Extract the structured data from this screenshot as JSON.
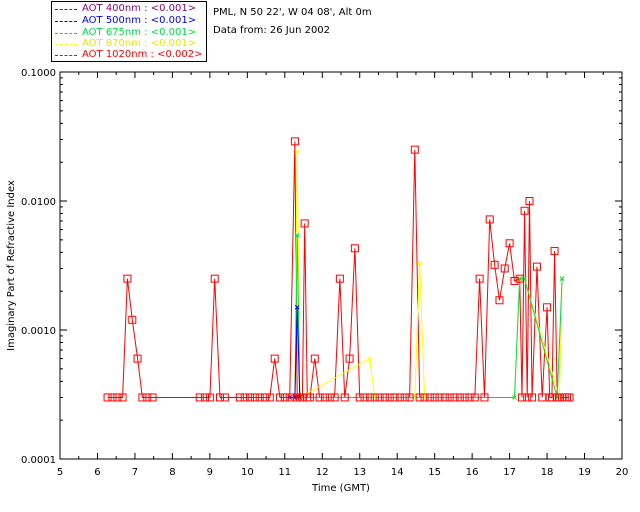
{
  "header": {
    "site": "PML, N 50 22', W 04 08', Alt 0m",
    "date": "Data from: 26 Jun 2002"
  },
  "legend": [
    {
      "label": "AOT  400nm : <0.001>",
      "color": "#7a0a7a"
    },
    {
      "label": "AOT  500nm : <0.001>",
      "color": "#0000ff"
    },
    {
      "label": "AOT  675nm : <0.001>",
      "color": "#00dd44"
    },
    {
      "label": "AOT  870nm : <0.001>",
      "color": "#ffff00"
    },
    {
      "label": "AOT 1020nm : <0.002>",
      "color": "#ff0000"
    }
  ],
  "chart_data": {
    "type": "line",
    "xlabel": "Time (GMT)",
    "ylabel": "Imaginary Part of Refractive Index",
    "xlim": [
      5,
      20
    ],
    "ylim": [
      0.0001,
      0.1
    ],
    "yscale": "log",
    "xticks": [
      "5",
      "6",
      "7",
      "8",
      "9",
      "10",
      "11",
      "12",
      "13",
      "14",
      "15",
      "16",
      "17",
      "18",
      "19",
      "20"
    ],
    "yticks": [
      "0.0001",
      "0.0010",
      "0.0100",
      "0.1000"
    ],
    "series": [
      {
        "name": "AOT 1020nm : <0.002>",
        "color": "#ff0000",
        "x": [
          6.27,
          6.4,
          6.53,
          6.67,
          6.8,
          6.93,
          7.07,
          7.2,
          7.33,
          7.47,
          8.73,
          8.87,
          9.0,
          9.13,
          9.27,
          9.4,
          9.8,
          9.93,
          10.07,
          10.2,
          10.33,
          10.47,
          10.6,
          10.73,
          10.87,
          11.0,
          11.13,
          11.27,
          11.33,
          11.4,
          11.47,
          11.53,
          11.6,
          11.67,
          11.8,
          11.93,
          12.07,
          12.2,
          12.33,
          12.47,
          12.6,
          12.73,
          12.87,
          13.0,
          13.13,
          13.27,
          13.4,
          13.53,
          13.67,
          13.8,
          13.93,
          14.07,
          14.2,
          14.33,
          14.47,
          14.6,
          14.73,
          14.87,
          15.0,
          15.13,
          15.27,
          15.4,
          15.53,
          15.67,
          15.8,
          15.93,
          16.07,
          16.2,
          16.33,
          16.47,
          16.6,
          16.73,
          16.87,
          17.0,
          17.13,
          17.27,
          17.33,
          17.4,
          17.47,
          17.53,
          17.6,
          17.73,
          17.87,
          18.0,
          18.07,
          18.13,
          18.2,
          18.27,
          18.33,
          18.4,
          18.47,
          18.53,
          18.6
        ],
        "y": [
          0.0003,
          0.0003,
          0.0003,
          0.0003,
          0.0025,
          0.0012,
          0.0006,
          0.0003,
          0.0003,
          0.0003,
          0.0003,
          0.0003,
          0.0003,
          0.0025,
          0.0003,
          0.0003,
          0.0003,
          0.0003,
          0.0003,
          0.0003,
          0.0003,
          0.0003,
          0.0003,
          0.0006,
          0.0003,
          0.0003,
          0.0003,
          0.029,
          0.0003,
          0.0003,
          0.0003,
          0.0067,
          0.0003,
          0.0003,
          0.0006,
          0.0003,
          0.0003,
          0.0003,
          0.0003,
          0.0025,
          0.0003,
          0.0006,
          0.0043,
          0.0003,
          0.0003,
          0.0003,
          0.0003,
          0.0003,
          0.0003,
          0.0003,
          0.0003,
          0.0003,
          0.0003,
          0.0003,
          0.025,
          0.0003,
          0.0003,
          0.0003,
          0.0003,
          0.0003,
          0.0003,
          0.0003,
          0.0003,
          0.0003,
          0.0003,
          0.0003,
          0.0003,
          0.0025,
          0.0003,
          0.0072,
          0.0032,
          0.0017,
          0.003,
          0.0047,
          0.0024,
          0.0025,
          0.0003,
          0.0084,
          0.0003,
          0.01,
          0.0003,
          0.0031,
          0.0003,
          0.0015,
          0.0003,
          0.0003,
          0.0041,
          0.0003,
          0.0003,
          0.0003,
          0.0003,
          0.0003,
          0.0003
        ],
        "markers": "square"
      },
      {
        "name": "AOT  870nm : <0.001>",
        "color": "#ffff00",
        "x": [
          11.13,
          11.27,
          11.33,
          11.4,
          13.27,
          13.4,
          14.47,
          14.6,
          14.73,
          17.13,
          17.27,
          17.4,
          18.33,
          18.4
        ],
        "y": [
          0.0003,
          0.0003,
          0.024,
          0.0003,
          0.0006,
          0.0003,
          0.0003,
          0.0033,
          0.0003,
          0.0003,
          0.0025,
          0.0025,
          0.0003,
          0.0025
        ]
      },
      {
        "name": "AOT  675nm : <0.001>",
        "color": "#00dd44",
        "x": [
          11.13,
          11.27,
          11.33,
          11.4,
          17.13,
          17.27,
          17.4,
          18.27,
          18.4
        ],
        "y": [
          0.0003,
          0.0003,
          0.0054,
          0.0003,
          0.0003,
          0.0025,
          0.0025,
          0.0003,
          0.0025
        ]
      },
      {
        "name": "AOT  500nm : <0.001>",
        "color": "#0000ff",
        "x": [
          11.13,
          11.27,
          11.33,
          11.4
        ],
        "y": [
          0.0003,
          0.0003,
          0.0015,
          0.0003
        ]
      },
      {
        "name": "AOT  400nm : <0.001>",
        "color": "#7a0a7a",
        "x": [
          11.13,
          11.27,
          11.33,
          11.4
        ],
        "y": [
          0.0003,
          0.0003,
          0.0003,
          0.0003
        ]
      }
    ]
  }
}
